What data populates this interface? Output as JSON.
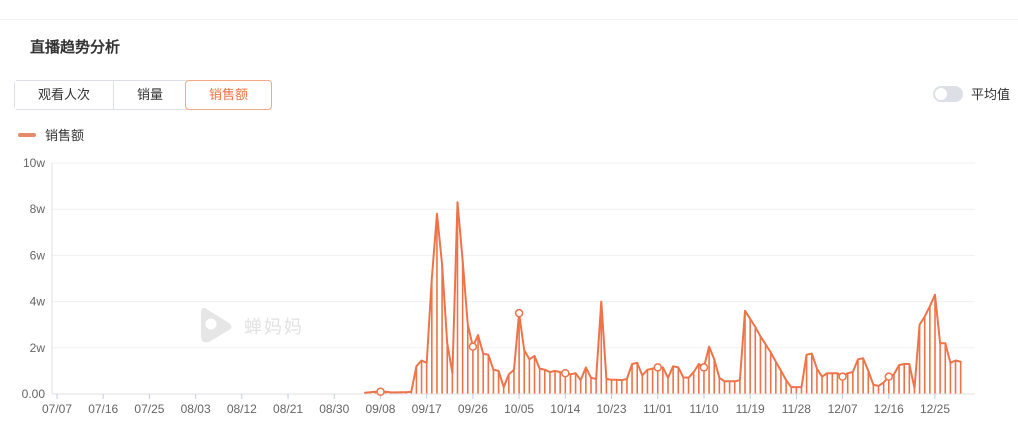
{
  "section_title": "直播趋势分析",
  "tabs": [
    {
      "label": "观看人次",
      "active": false
    },
    {
      "label": "销量",
      "active": false
    },
    {
      "label": "销售额",
      "active": true
    }
  ],
  "average_toggle": {
    "label": "平均值",
    "state": "off"
  },
  "legend": {
    "label": "销售额"
  },
  "watermark": {
    "text": "蝉妈妈"
  },
  "colors": {
    "accent": "#ee7348",
    "legend_dash": "#e58b6a",
    "grid": "#f0f0f0",
    "axis": "#e0e0e0",
    "tick": "#c0cde0",
    "axis_text": "#666666",
    "marker_fill": "#ffffff"
  },
  "chart_data": {
    "type": "line",
    "series_name": "销售额",
    "unit": "w (万)",
    "ylim": [
      0,
      10
    ],
    "y_tick_values": [
      10,
      8,
      6,
      4,
      2
    ],
    "y_tick_labels": [
      "10w",
      "8w",
      "6w",
      "4w",
      "2w"
    ],
    "y_zero_label": "0.00",
    "x_tick_labels": [
      "07/07",
      "07/16",
      "07/25",
      "08/03",
      "08/12",
      "08/21",
      "08/30",
      "09/08",
      "09/17",
      "09/26",
      "10/05",
      "10/14",
      "10/23",
      "11/01",
      "11/10",
      "11/19",
      "11/28",
      "12/07",
      "12/16",
      "12/25"
    ],
    "x_tick_interval_days": 9,
    "x_day_max": 179,
    "grid": true,
    "legend_position": "top-left",
    "points": [
      [
        60,
        0.05
      ],
      [
        61,
        0.08
      ],
      [
        62,
        0.1
      ],
      [
        63,
        0.1
      ],
      [
        64,
        0.1
      ],
      [
        65,
        0.07
      ],
      [
        66,
        0.07
      ],
      [
        67,
        0.08
      ],
      [
        68,
        0.08
      ],
      [
        69,
        0.1
      ],
      [
        70,
        1.2
      ],
      [
        71,
        1.45
      ],
      [
        72,
        1.35
      ],
      [
        73,
        5.0
      ],
      [
        74,
        7.8
      ],
      [
        75,
        5.6
      ],
      [
        76,
        2.2
      ],
      [
        77,
        0.9
      ],
      [
        78,
        8.3
      ],
      [
        79,
        5.8
      ],
      [
        80,
        3.0
      ],
      [
        81,
        2.05
      ],
      [
        82,
        2.55
      ],
      [
        83,
        1.75
      ],
      [
        84,
        1.7
      ],
      [
        85,
        1.05
      ],
      [
        86,
        1.0
      ],
      [
        87,
        0.3
      ],
      [
        88,
        0.85
      ],
      [
        89,
        1.05
      ],
      [
        90,
        3.5
      ],
      [
        91,
        1.9
      ],
      [
        92,
        1.5
      ],
      [
        93,
        1.65
      ],
      [
        94,
        1.1
      ],
      [
        95,
        1.05
      ],
      [
        96,
        0.95
      ],
      [
        97,
        1.0
      ],
      [
        98,
        0.95
      ],
      [
        99,
        0.9
      ],
      [
        100,
        0.85
      ],
      [
        101,
        0.9
      ],
      [
        102,
        0.6
      ],
      [
        103,
        1.15
      ],
      [
        104,
        0.7
      ],
      [
        105,
        0.65
      ],
      [
        106,
        4.0
      ],
      [
        107,
        0.65
      ],
      [
        108,
        0.62
      ],
      [
        109,
        0.62
      ],
      [
        110,
        0.6
      ],
      [
        111,
        0.65
      ],
      [
        112,
        1.3
      ],
      [
        113,
        1.35
      ],
      [
        114,
        0.8
      ],
      [
        115,
        1.05
      ],
      [
        116,
        1.1
      ],
      [
        117,
        1.15
      ],
      [
        118,
        1.15
      ],
      [
        119,
        0.7
      ],
      [
        120,
        1.2
      ],
      [
        121,
        1.15
      ],
      [
        122,
        0.72
      ],
      [
        123,
        0.7
      ],
      [
        124,
        0.95
      ],
      [
        125,
        1.3
      ],
      [
        126,
        1.15
      ],
      [
        127,
        2.05
      ],
      [
        128,
        1.5
      ],
      [
        129,
        0.7
      ],
      [
        130,
        0.55
      ],
      [
        131,
        0.55
      ],
      [
        132,
        0.55
      ],
      [
        133,
        0.6
      ],
      [
        134,
        3.6
      ],
      [
        135,
        3.25
      ],
      [
        136,
        2.9
      ],
      [
        137,
        2.5
      ],
      [
        138,
        2.15
      ],
      [
        139,
        1.8
      ],
      [
        140,
        1.4
      ],
      [
        141,
        1.0
      ],
      [
        142,
        0.6
      ],
      [
        143,
        0.3
      ],
      [
        144,
        0.3
      ],
      [
        145,
        0.3
      ],
      [
        146,
        1.7
      ],
      [
        147,
        1.75
      ],
      [
        148,
        1.1
      ],
      [
        149,
        0.75
      ],
      [
        150,
        0.9
      ],
      [
        151,
        0.9
      ],
      [
        152,
        0.9
      ],
      [
        153,
        0.75
      ],
      [
        154,
        0.9
      ],
      [
        155,
        0.95
      ],
      [
        156,
        1.5
      ],
      [
        157,
        1.55
      ],
      [
        158,
        1.0
      ],
      [
        159,
        0.4
      ],
      [
        160,
        0.35
      ],
      [
        161,
        0.5
      ],
      [
        162,
        0.75
      ],
      [
        163,
        0.85
      ],
      [
        164,
        1.25
      ],
      [
        165,
        1.3
      ],
      [
        166,
        1.3
      ],
      [
        167,
        0.25
      ],
      [
        168,
        3.0
      ],
      [
        169,
        3.35
      ],
      [
        170,
        3.8
      ],
      [
        171,
        4.3
      ],
      [
        172,
        2.2
      ],
      [
        173,
        2.2
      ],
      [
        174,
        1.35
      ],
      [
        175,
        1.45
      ],
      [
        176,
        1.4
      ]
    ],
    "marker_days": [
      63,
      81,
      90,
      99,
      117,
      126,
      153,
      162
    ]
  }
}
